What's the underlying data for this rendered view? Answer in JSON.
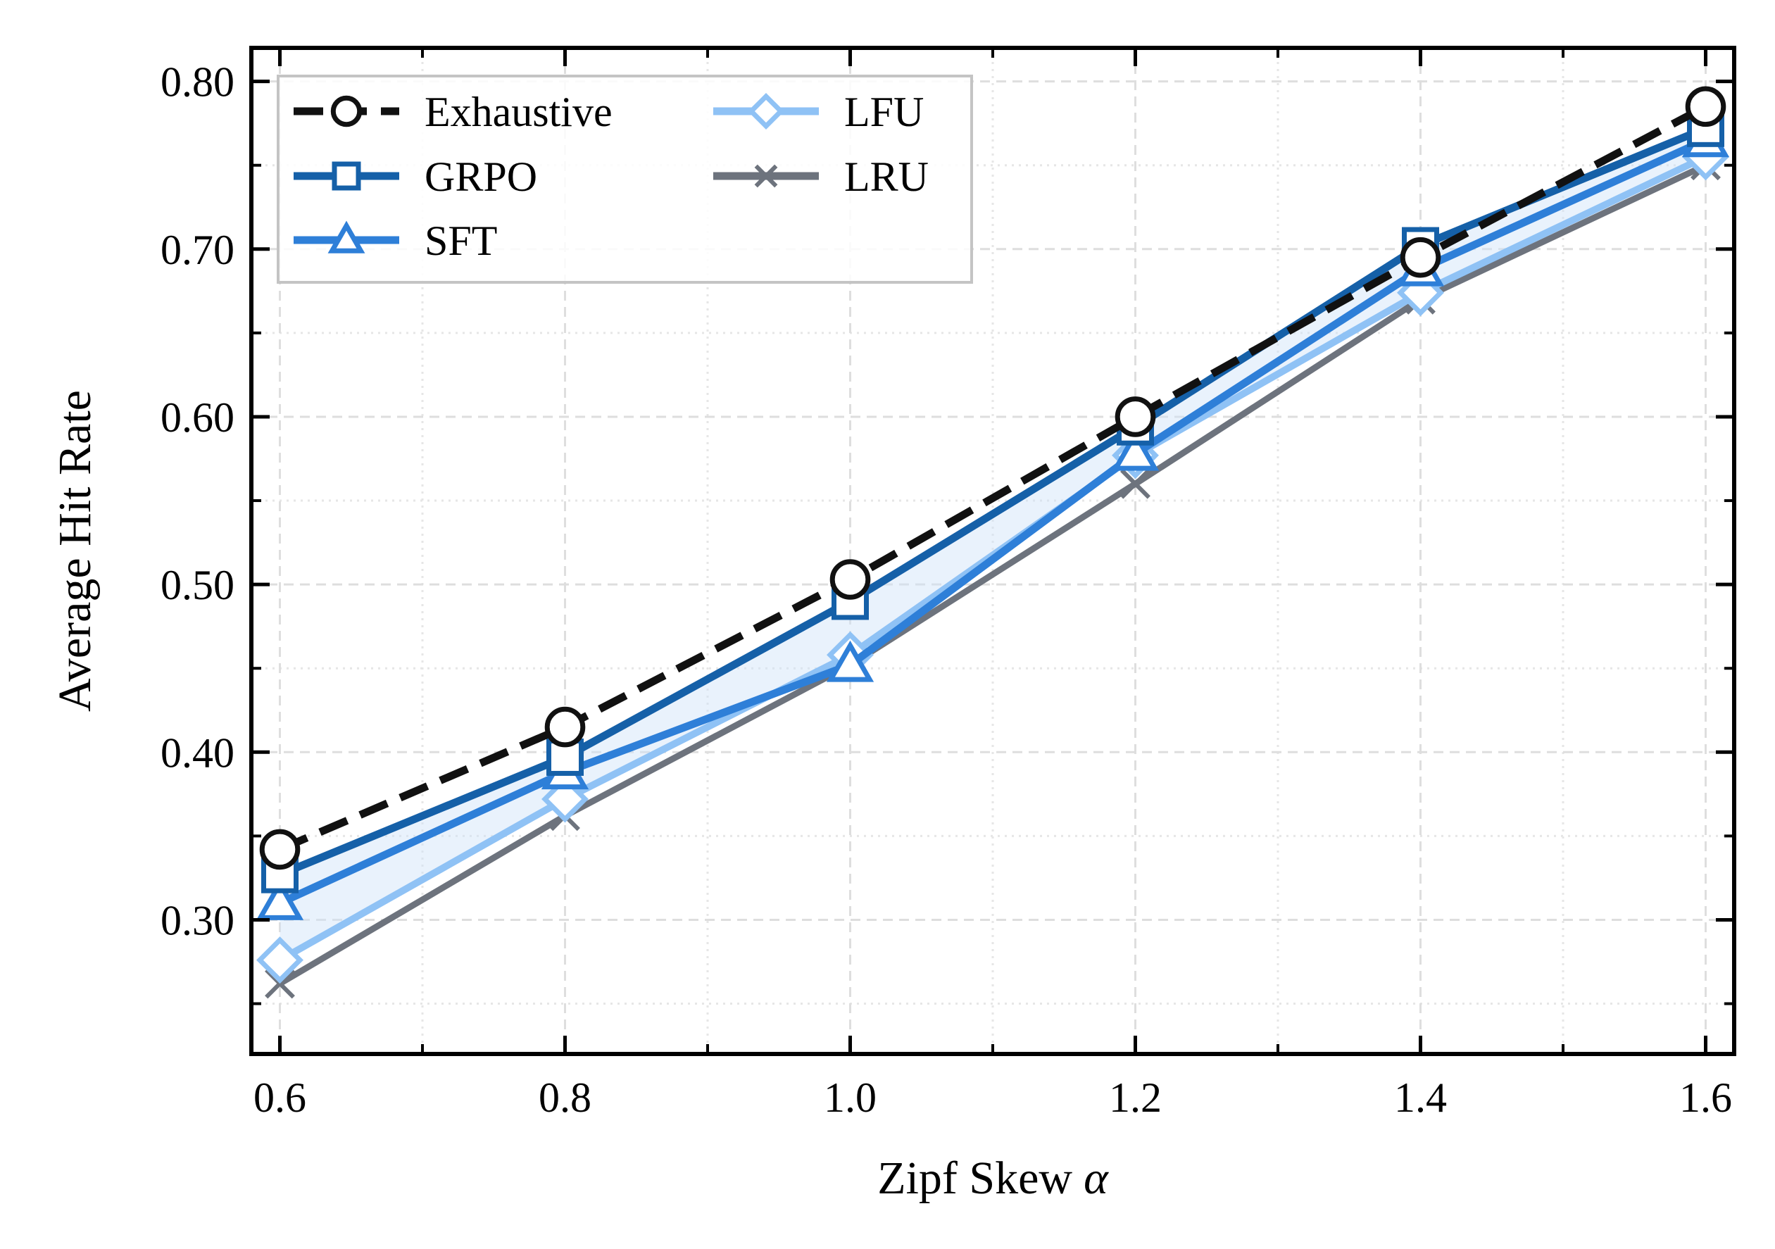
{
  "chart_data": {
    "type": "line",
    "title": "",
    "xlabel": "Zipf Skew",
    "xlabel_symbol": "α",
    "ylabel": "Average Hit Rate",
    "x": [
      0.6,
      0.8,
      1.0,
      1.2,
      1.4,
      1.6
    ],
    "xlim": [
      0.58,
      1.62
    ],
    "ylim": [
      0.22,
      0.82
    ],
    "x_ticks": [
      "0.6",
      "0.8",
      "1.0",
      "1.2",
      "1.4",
      "1.6"
    ],
    "y_ticks": [
      "0.30",
      "0.40",
      "0.50",
      "0.60",
      "0.70",
      "0.80"
    ],
    "grid": true,
    "legend_position": "top-left",
    "shaded_band": {
      "between": [
        "GRPO",
        "LFU"
      ],
      "color": "#cfe3f8"
    },
    "series": [
      {
        "name": "Exhaustive",
        "values": [
          0.342,
          0.415,
          0.503,
          0.6,
          0.695,
          0.785
        ],
        "color": "#111111",
        "marker": "circle",
        "style": "dashed"
      },
      {
        "name": "GRPO",
        "values": [
          0.327,
          0.397,
          0.49,
          0.594,
          0.702,
          0.772
        ],
        "color": "#1560a8",
        "marker": "square",
        "style": "solid"
      },
      {
        "name": "SFT",
        "values": [
          0.31,
          0.388,
          0.452,
          0.578,
          0.688,
          0.765
        ],
        "color": "#2e7fd8",
        "marker": "triangle",
        "style": "solid"
      },
      {
        "name": "LFU",
        "values": [
          0.276,
          0.372,
          0.458,
          0.577,
          0.674,
          0.755
        ],
        "color": "#8fc2f5",
        "marker": "diamond",
        "style": "solid"
      },
      {
        "name": "LRU",
        "values": [
          0.262,
          0.362,
          0.452,
          0.56,
          0.67,
          0.75
        ],
        "color": "#6d737d",
        "marker": "x",
        "style": "solid"
      }
    ]
  }
}
